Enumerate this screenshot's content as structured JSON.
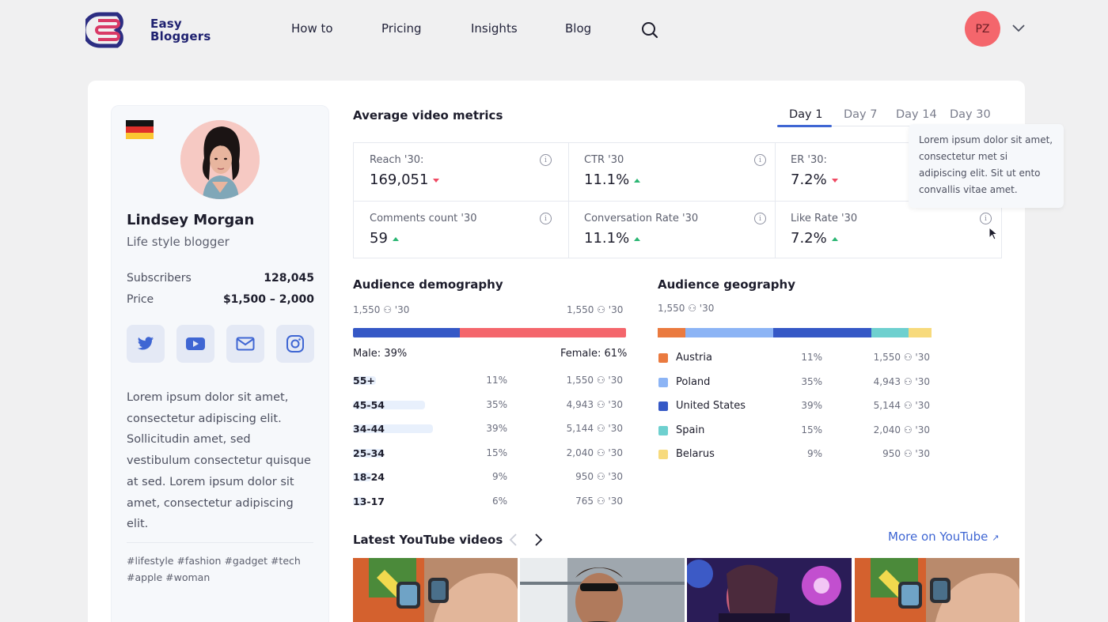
{
  "header": {
    "brand_line1": "Easy",
    "brand_line2": "Bloggers",
    "nav": [
      "How to",
      "Pricing",
      "Insights",
      "Blog"
    ],
    "user_initials": "PZ"
  },
  "profile": {
    "name": "Lindsey Morgan",
    "role": "Life style blogger",
    "subscribers_label": "Subscribers",
    "subscribers_value": "128,045",
    "price_label": "Price",
    "price_value": "$1,500 – 2,000",
    "bio": "Lorem ipsum dolor sit amet, consectetur adipiscing elit. Sollicitudin amet, sed vestibulum consectetur quisque at sed. Lorem ipsum dolor sit amet, consectetur adipiscing elit.",
    "tags": "#lifestyle  #fashion  #gadget  #tech  #apple  #woman"
  },
  "metrics": {
    "title": "Average video metrics",
    "tabs": [
      "Day 1",
      "Day 7",
      "Day 14",
      "Day 30"
    ],
    "items": [
      {
        "label": "Reach '30:",
        "value": "169,051",
        "trend": "down"
      },
      {
        "label": "CTR '30",
        "value": "11.1%",
        "trend": "up"
      },
      {
        "label": "ER '30:",
        "value": "7.2%",
        "trend": "down"
      },
      {
        "label": "Comments count '30",
        "value": "59",
        "trend": "up"
      },
      {
        "label": "Conversation Rate '30",
        "value": "11.1%",
        "trend": "up"
      },
      {
        "label": "Like Rate '30",
        "value": "7.2%",
        "trend": "up"
      }
    ],
    "tooltip": "Lorem ipsum dolor sit amet, consectetur met si adipiscing elit. Sit ut ento convallis vitae amet."
  },
  "demography": {
    "title": "Audience demography",
    "left_count": "1,550",
    "right_count": "1,550",
    "period": "'30",
    "male": "Male: 39%",
    "female": "Female: 61%",
    "male_share": 39,
    "rows": [
      {
        "label": "55+",
        "pct": "11%",
        "count": "1,550",
        "share": 11
      },
      {
        "label": "45-54",
        "pct": "35%",
        "count": "4,943",
        "share": 35
      },
      {
        "label": "34-44",
        "pct": "39%",
        "count": "5,144",
        "share": 39
      },
      {
        "label": "25-34",
        "pct": "15%",
        "count": "2,040",
        "share": 15
      },
      {
        "label": "18-24",
        "pct": "9%",
        "count": "950",
        "share": 9
      },
      {
        "label": "13-17",
        "pct": "6%",
        "count": "765",
        "share": 6
      }
    ]
  },
  "geography": {
    "title": "Audience geography",
    "count": "1,550",
    "period": "'30",
    "rows": [
      {
        "country": "Austria",
        "pct": "11%",
        "count": "1,550",
        "share": 11,
        "color": "#ea7a3f"
      },
      {
        "country": "Poland",
        "pct": "35%",
        "count": "4,943",
        "share": 35,
        "color": "#8cb4f5"
      },
      {
        "country": "United States",
        "pct": "39%",
        "count": "5,144",
        "share": 39,
        "color": "#3558c6"
      },
      {
        "country": "Spain",
        "pct": "15%",
        "count": "2,040",
        "share": 15,
        "color": "#6ed0cf"
      },
      {
        "country": "Belarus",
        "pct": "9%",
        "count": "950",
        "share": 9,
        "color": "#f7da7c"
      }
    ]
  },
  "youtube": {
    "title": "Latest YouTube videos",
    "more": "More on YouTube"
  },
  "colors": {
    "accent": "#3f66d3",
    "male": "#3558c6",
    "female": "#f4666c",
    "up": "#2bb673",
    "down": "#ef4a63"
  }
}
